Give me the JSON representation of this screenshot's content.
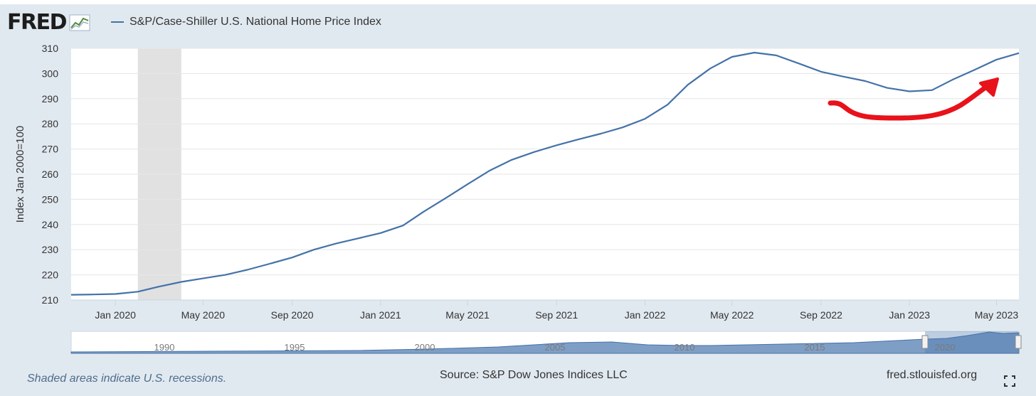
{
  "header": {
    "logo_text": "FRED",
    "logo_icon": "line-graph-icon"
  },
  "chart_data": {
    "type": "line",
    "title": "",
    "ylabel": "Index Jan 2000=100",
    "xlabel": "",
    "ylim": [
      210,
      310
    ],
    "yticks": [
      210,
      220,
      230,
      240,
      250,
      260,
      270,
      280,
      290,
      300,
      310
    ],
    "xlim": [
      "2019-11-01",
      "2023-06-01"
    ],
    "xtick_labels": [
      "Jan 2020",
      "May 2020",
      "Sep 2020",
      "Jan 2021",
      "May 2021",
      "Sep 2021",
      "Jan 2022",
      "May 2022",
      "Sep 2022",
      "Jan 2023",
      "May 2023"
    ],
    "xtick_dates": [
      "2020-01-01",
      "2020-05-01",
      "2020-09-01",
      "2021-01-01",
      "2021-05-01",
      "2021-09-01",
      "2022-01-01",
      "2022-05-01",
      "2022-09-01",
      "2023-01-01",
      "2023-05-01"
    ],
    "grid": true,
    "legend_position": "top-left",
    "recession_shading": [
      [
        "2020-02-01",
        "2020-04-01"
      ]
    ],
    "series": [
      {
        "name": "S&P/Case-Shiller U.S. National Home Price Index",
        "color": "#4472a8",
        "x": [
          "2019-11-01",
          "2019-12-01",
          "2020-01-01",
          "2020-02-01",
          "2020-03-01",
          "2020-04-01",
          "2020-05-01",
          "2020-06-01",
          "2020-07-01",
          "2020-08-01",
          "2020-09-01",
          "2020-10-01",
          "2020-11-01",
          "2020-12-01",
          "2021-01-01",
          "2021-02-01",
          "2021-03-01",
          "2021-04-01",
          "2021-05-01",
          "2021-06-01",
          "2021-07-01",
          "2021-08-01",
          "2021-09-01",
          "2021-10-01",
          "2021-11-01",
          "2021-12-01",
          "2022-01-01",
          "2022-02-01",
          "2022-03-01",
          "2022-04-01",
          "2022-05-01",
          "2022-06-01",
          "2022-07-01",
          "2022-08-01",
          "2022-09-01",
          "2022-10-01",
          "2022-11-01",
          "2022-12-01",
          "2023-01-01",
          "2023-02-01",
          "2023-03-01",
          "2023-04-01",
          "2023-05-01",
          "2023-06-01"
        ],
        "y": [
          212.1,
          212.2,
          212.4,
          213.3,
          215.3,
          217.2,
          218.6,
          220.0,
          222.0,
          224.4,
          226.9,
          230.0,
          232.5,
          234.5,
          236.6,
          239.6,
          245.0,
          250.5,
          256.0,
          261.5,
          265.7,
          268.8,
          271.5,
          273.8,
          276.1,
          278.6,
          282.0,
          287.6,
          295.5,
          302.0,
          306.6,
          308.3,
          307.2,
          304.0,
          300.7,
          298.8,
          297.0,
          294.3,
          292.9,
          293.4,
          297.5,
          301.5,
          305.5,
          308.1
        ]
      }
    ],
    "annotations": [
      {
        "type": "hand-drawn-arrow",
        "color": "#e8121b"
      }
    ],
    "navigator": {
      "labels": [
        "1990",
        "1995",
        "2000",
        "2005",
        "2010",
        "2015",
        "2020"
      ]
    }
  },
  "footer": {
    "recession_note": "Shaded areas indicate U.S. recessions.",
    "source": "Source: S&P Dow Jones Indices LLC",
    "site": "fred.stlouisfed.org",
    "fullscreen_icon": "fullscreen-icon"
  }
}
